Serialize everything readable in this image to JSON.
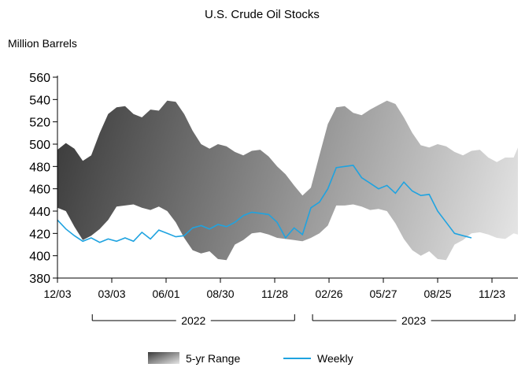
{
  "chart_data": {
    "type": "area",
    "title": "U.S. Crude Oil Stocks",
    "ylabel": "Million Barrels",
    "xlabel": "",
    "ylim": [
      380,
      560
    ],
    "yticks": [
      380,
      400,
      420,
      440,
      460,
      480,
      500,
      520,
      540,
      560
    ],
    "xlim": [
      "2021-12-03",
      "2024-01-05"
    ],
    "xticks": [
      {
        "label": "12/03",
        "date": "2021-12-03"
      },
      {
        "label": "03/03",
        "date": "2022-03-03"
      },
      {
        "label": "06/01",
        "date": "2022-06-01"
      },
      {
        "label": "08/30",
        "date": "2022-08-30"
      },
      {
        "label": "11/28",
        "date": "2022-11-28"
      },
      {
        "label": "02/26",
        "date": "2023-02-26"
      },
      {
        "label": "05/27",
        "date": "2023-05-27"
      },
      {
        "label": "08/25",
        "date": "2023-08-25"
      },
      {
        "label": "11/23",
        "date": "2023-11-23"
      }
    ],
    "year_groups": [
      {
        "label": "2022",
        "start": "2022-01-01",
        "end": "2022-12-31"
      },
      {
        "label": "2023",
        "start": "2023-01-01",
        "end": "2023-12-31"
      }
    ],
    "legend": {
      "position": "bottom-center",
      "range_label": "5-yr Range",
      "weekly_label": "Weekly"
    },
    "colors": {
      "weekly": "#1fa3e0",
      "range_dark": "#3a3a3a",
      "range_light": "#e6e6e6",
      "axis": "#000000"
    },
    "series": [
      {
        "name": "5-yr Range",
        "type": "band",
        "x": [
          "2021-12-03",
          "2021-12-17",
          "2021-12-31",
          "2022-01-14",
          "2022-01-28",
          "2022-02-11",
          "2022-02-25",
          "2022-03-11",
          "2022-03-25",
          "2022-04-08",
          "2022-04-22",
          "2022-05-06",
          "2022-05-20",
          "2022-06-03",
          "2022-06-17",
          "2022-07-01",
          "2022-07-15",
          "2022-07-29",
          "2022-08-12",
          "2022-08-26",
          "2022-09-09",
          "2022-09-23",
          "2022-10-07",
          "2022-10-21",
          "2022-11-04",
          "2022-11-18",
          "2022-12-02",
          "2022-12-16",
          "2022-12-30",
          "2023-01-13",
          "2023-01-27",
          "2023-02-10",
          "2023-02-24",
          "2023-03-10",
          "2023-03-24",
          "2023-04-07",
          "2023-04-21",
          "2023-05-05",
          "2023-05-19",
          "2023-06-02",
          "2023-06-16",
          "2023-06-30",
          "2023-07-14",
          "2023-07-28",
          "2023-08-11",
          "2023-08-25",
          "2023-09-08",
          "2023-09-22",
          "2023-10-06",
          "2023-10-20",
          "2023-11-03",
          "2023-11-17",
          "2023-12-01",
          "2023-12-15",
          "2023-12-29",
          "2024-01-05"
        ],
        "low": [
          443,
          440,
          426,
          414,
          418,
          424,
          432,
          444,
          445,
          446,
          443,
          441,
          444,
          440,
          430,
          416,
          405,
          402,
          404,
          397,
          396,
          410,
          414,
          420,
          421,
          419,
          416,
          415,
          414,
          413,
          416,
          420,
          427,
          445,
          445,
          446,
          444,
          441,
          442,
          440,
          429,
          415,
          405,
          400,
          404,
          397,
          396,
          410,
          414,
          420,
          421,
          419,
          416,
          415,
          420,
          419
        ],
        "high": [
          495,
          501,
          496,
          485,
          490,
          510,
          527,
          533,
          534,
          527,
          524,
          531,
          530,
          539,
          538,
          527,
          512,
          500,
          496,
          500,
          498,
          493,
          490,
          494,
          495,
          489,
          480,
          473,
          463,
          454,
          461,
          490,
          518,
          533,
          534,
          528,
          526,
          531,
          535,
          539,
          536,
          524,
          510,
          499,
          497,
          500,
          498,
          493,
          490,
          494,
          495,
          488,
          484,
          488,
          488,
          497
        ]
      },
      {
        "name": "Weekly",
        "type": "line",
        "x": [
          "2021-12-03",
          "2021-12-17",
          "2021-12-31",
          "2022-01-14",
          "2022-01-28",
          "2022-02-11",
          "2022-02-25",
          "2022-03-11",
          "2022-03-25",
          "2022-04-08",
          "2022-04-22",
          "2022-05-06",
          "2022-05-20",
          "2022-06-03",
          "2022-06-17",
          "2022-07-01",
          "2022-07-15",
          "2022-07-29",
          "2022-08-12",
          "2022-08-26",
          "2022-09-09",
          "2022-09-23",
          "2022-10-07",
          "2022-10-21",
          "2022-11-04",
          "2022-11-18",
          "2022-12-02",
          "2022-12-16",
          "2022-12-30",
          "2023-01-13",
          "2023-01-27",
          "2023-02-10",
          "2023-02-24",
          "2023-03-10",
          "2023-03-24",
          "2023-04-07",
          "2023-04-21",
          "2023-05-05",
          "2023-05-19",
          "2023-06-02",
          "2023-06-16",
          "2023-06-30",
          "2023-07-14",
          "2023-07-28",
          "2023-08-11",
          "2023-08-25",
          "2023-09-08",
          "2023-09-22",
          "2023-10-06",
          "2023-10-20"
        ],
        "values": [
          432,
          424,
          418,
          413,
          416,
          412,
          415,
          413,
          416,
          413,
          421,
          415,
          423,
          420,
          417,
          418,
          425,
          427,
          424,
          428,
          426,
          430,
          436,
          439,
          438,
          437,
          430,
          416,
          425,
          419,
          443,
          448,
          460,
          479,
          480,
          481,
          470,
          465,
          460,
          463,
          456,
          466,
          458,
          454,
          455,
          440,
          430,
          420,
          418,
          416
        ]
      }
    ]
  }
}
